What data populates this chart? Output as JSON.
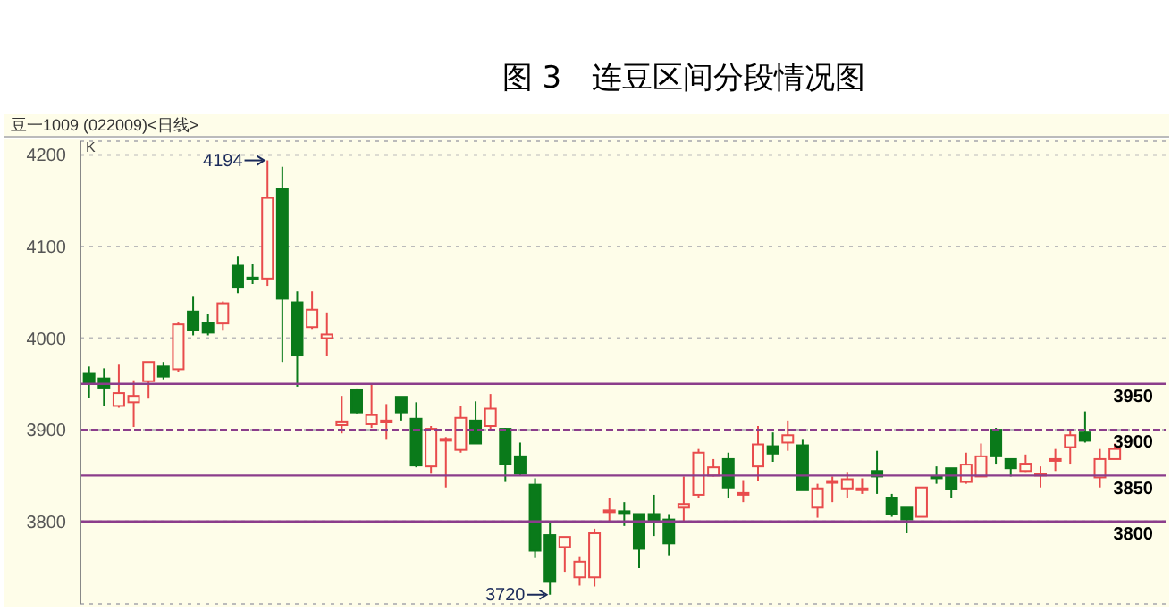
{
  "chart_data": {
    "type": "candlestick",
    "title": "图 3　连豆区间分段情况图",
    "subtitle": "豆一1009 (022009)<日线>",
    "annotations": [
      "K",
      "4194",
      "3720"
    ],
    "categories": [
      null,
      null,
      null,
      null,
      null,
      null,
      null,
      null,
      null,
      null,
      null,
      null,
      null,
      null,
      null,
      null,
      null,
      null,
      null,
      null,
      null,
      null,
      null,
      null,
      null,
      null,
      null,
      null,
      null,
      null,
      null,
      null,
      null,
      null,
      null,
      null,
      null,
      null,
      null,
      null,
      null,
      null,
      null,
      null,
      null,
      null,
      null,
      null,
      null,
      null,
      null,
      null,
      null,
      null,
      null,
      null,
      null,
      null,
      null,
      null,
      null,
      null,
      null,
      null,
      null,
      null,
      null,
      null,
      null,
      null
    ],
    "ohlc": [
      [
        3961,
        3969,
        3935,
        3951
      ],
      [
        3956,
        3967,
        3926,
        3946
      ],
      [
        3926,
        3971,
        3924,
        3940
      ],
      [
        3930,
        3954,
        3903,
        3937
      ],
      [
        3953,
        3974,
        3934,
        3974
      ],
      [
        3969,
        3974,
        3955,
        3958
      ],
      [
        3966,
        4017,
        3963,
        4015
      ],
      [
        4029,
        4046,
        4003,
        4009
      ],
      [
        4017,
        4026,
        4003,
        4006
      ],
      [
        4016,
        4040,
        4009,
        4038
      ],
      [
        4079,
        4089,
        4049,
        4056
      ],
      [
        4066,
        4081,
        4059,
        4065
      ],
      [
        4065,
        4194,
        4057,
        4153
      ],
      [
        4163,
        4187,
        3974,
        4043
      ],
      [
        4039,
        4051,
        3947,
        3981
      ],
      [
        4012,
        4051,
        4010,
        4031
      ],
      [
        4000,
        4028,
        3981,
        4004
      ],
      [
        3905,
        3937,
        3896,
        3909
      ],
      [
        3944,
        3945,
        3918,
        3919
      ],
      [
        3906,
        3950,
        3902,
        3916
      ],
      [
        3909,
        3928,
        3889,
        3910
      ],
      [
        3936,
        3936,
        3910,
        3919
      ],
      [
        3912,
        3930,
        3859,
        3861
      ],
      [
        3860,
        3904,
        3852,
        3901
      ],
      [
        3889,
        3892,
        3837,
        3890
      ],
      [
        3878,
        3926,
        3875,
        3913
      ],
      [
        3910,
        3931,
        3885,
        3885
      ],
      [
        3904,
        3939,
        3901,
        3923
      ],
      [
        3901,
        3902,
        3843,
        3863
      ],
      [
        3871,
        3886,
        3850,
        3852
      ],
      [
        3840,
        3847,
        3760,
        3768
      ],
      [
        3785,
        3798,
        3720,
        3734
      ],
      [
        3772,
        3783,
        3745,
        3783
      ],
      [
        3739,
        3762,
        3730,
        3756
      ],
      [
        3739,
        3792,
        3729,
        3787
      ],
      [
        3811,
        3826,
        3799,
        3812
      ],
      [
        3811,
        3821,
        3795,
        3810
      ],
      [
        3808,
        3808,
        3749,
        3770
      ],
      [
        3808,
        3829,
        3784,
        3799
      ],
      [
        3802,
        3808,
        3763,
        3776
      ],
      [
        3815,
        3849,
        3799,
        3819
      ],
      [
        3829,
        3879,
        3826,
        3875
      ],
      [
        3850,
        3868,
        3849,
        3859
      ],
      [
        3868,
        3875,
        3825,
        3837
      ],
      [
        3830,
        3845,
        3821,
        3831
      ],
      [
        3860,
        3904,
        3844,
        3884
      ],
      [
        3882,
        3897,
        3865,
        3874
      ],
      [
        3886,
        3910,
        3877,
        3894
      ],
      [
        3883,
        3889,
        3834,
        3834
      ],
      [
        3815,
        3841,
        3804,
        3836
      ],
      [
        3843,
        3849,
        3821,
        3844
      ],
      [
        3836,
        3854,
        3826,
        3846
      ],
      [
        3835,
        3847,
        3830,
        3836
      ],
      [
        3855,
        3877,
        3830,
        3849
      ],
      [
        3826,
        3830,
        3805,
        3808
      ],
      [
        3815,
        3815,
        3787,
        3802
      ],
      [
        3805,
        3837,
        3805,
        3837
      ],
      [
        3849,
        3860,
        3841,
        3848
      ],
      [
        3858,
        3858,
        3826,
        3835
      ],
      [
        3843,
        3875,
        3841,
        3862
      ],
      [
        3849,
        3885,
        3849,
        3871
      ],
      [
        3900,
        3902,
        3863,
        3871
      ],
      [
        3868,
        3868,
        3849,
        3858
      ],
      [
        3855,
        3873,
        3854,
        3863
      ],
      [
        3851,
        3860,
        3837,
        3852
      ],
      [
        3867,
        3879,
        3855,
        3868
      ],
      [
        3881,
        3900,
        3863,
        3894
      ],
      [
        3897,
        3920,
        3886,
        3888
      ],
      [
        3848,
        3879,
        3837,
        3868
      ],
      [
        3868,
        3885,
        3868,
        3879
      ]
    ],
    "colors": [
      "#0a7a1a",
      "#0a7a1a",
      "#e84c4c",
      "#e84c4c",
      "#e84c4c",
      "#0a7a1a",
      "#e84c4c",
      "#0a7a1a",
      "#0a7a1a",
      "#e84c4c",
      "#0a7a1a",
      "#0a7a1a",
      "#e84c4c",
      "#0a7a1a",
      "#0a7a1a",
      "#e84c4c",
      "#e84c4c",
      "#e84c4c",
      "#0a7a1a",
      "#e84c4c",
      "#e84c4c",
      "#0a7a1a",
      "#0a7a1a",
      "#e84c4c",
      "#e84c4c",
      "#e84c4c",
      "#0a7a1a",
      "#e84c4c",
      "#0a7a1a",
      "#0a7a1a",
      "#0a7a1a",
      "#0a7a1a",
      "#e84c4c",
      "#e84c4c",
      "#e84c4c",
      "#e84c4c",
      "#0a7a1a",
      "#0a7a1a",
      "#0a7a1a",
      "#0a7a1a",
      "#e84c4c",
      "#e84c4c",
      "#e84c4c",
      "#0a7a1a",
      "#e84c4c",
      "#e84c4c",
      "#0a7a1a",
      "#e84c4c",
      "#0a7a1a",
      "#e84c4c",
      "#e84c4c",
      "#e84c4c",
      "#e84c4c",
      "#0a7a1a",
      "#0a7a1a",
      "#0a7a1a",
      "#e84c4c",
      "#0a7a1a",
      "#0a7a1a",
      "#e84c4c",
      "#e84c4c",
      "#0a7a1a",
      "#0a7a1a",
      "#e84c4c",
      "#e84c4c",
      "#e84c4c",
      "#e84c4c",
      "#0a7a1a",
      "#e84c4c",
      "#e84c4c"
    ],
    "ylim": [
      3710,
      4215
    ],
    "yticks": [
      3800,
      3900,
      4000,
      4100,
      4200
    ],
    "grid": "y",
    "tick_labels": "y",
    "ref_lines": [
      {
        "axis": "y",
        "value": 3950,
        "label": "3950",
        "color": "#8b3d8b",
        "line_style": "solid"
      },
      {
        "axis": "y",
        "value": 3900,
        "label": "3900",
        "color": "#8b3d8b",
        "line_style": "dashed"
      },
      {
        "axis": "y",
        "value": 3850,
        "label": "3850",
        "color": "#8b3d8b",
        "line_style": "solid"
      },
      {
        "axis": "y",
        "value": 3800,
        "label": "3800",
        "color": "#8b3d8b",
        "line_style": "solid"
      }
    ]
  }
}
